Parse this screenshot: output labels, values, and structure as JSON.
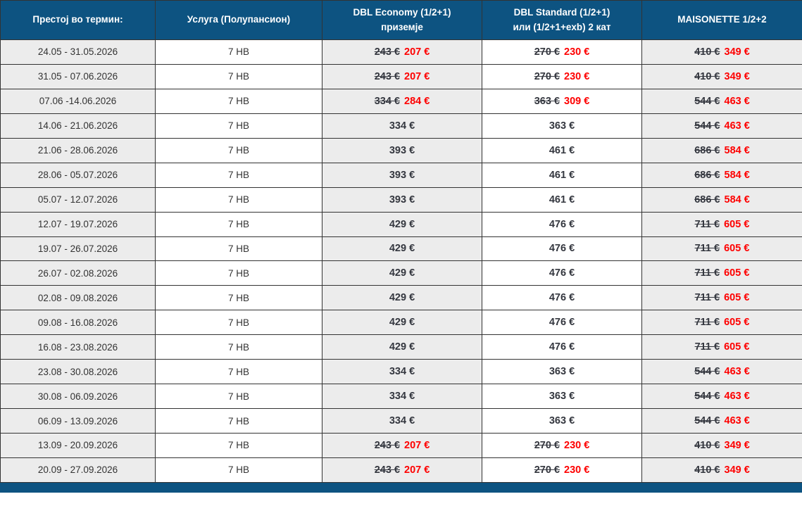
{
  "colors": {
    "header_bg": "#0d5381",
    "header_text": "#ffffff",
    "body_text": "#333333",
    "old_price_text": "#34373f",
    "new_price_text": "#fe0000",
    "gray_column_bg": "#ececec",
    "white_column_bg": "#ffffff",
    "border": "#333333"
  },
  "table": {
    "headers": [
      {
        "label": "Престој во термин:"
      },
      {
        "label": "Услуга (Полупансион)"
      },
      {
        "label": "DBL Economy (1/2+1)\nприземје"
      },
      {
        "label": "DBL Standard (1/2+1)\nили (1/2+1+exb) 2 кат"
      },
      {
        "label": "MAISONETTE 1/2+2"
      }
    ],
    "rows": [
      {
        "period": "24.05 - 31.05.2026",
        "service": "7 HB",
        "prices": [
          {
            "old": "243 €",
            "current": "207 €"
          },
          {
            "old": "270 €",
            "current": "230 €"
          },
          {
            "old": "410 €",
            "current": "349 €"
          }
        ]
      },
      {
        "period": "31.05 - 07.06.2026",
        "service": "7 HB",
        "prices": [
          {
            "old": "243 €",
            "current": "207 €"
          },
          {
            "old": "270 €",
            "current": "230 €"
          },
          {
            "old": "410 €",
            "current": "349 €"
          }
        ]
      },
      {
        "period": "07.06 -14.06.2026",
        "service": "7 HB",
        "prices": [
          {
            "old": "334 €",
            "current": "284 €"
          },
          {
            "old": "363 €",
            "current": "309 €"
          },
          {
            "old": "544 €",
            "current": "463 €"
          }
        ]
      },
      {
        "period": "14.06 - 21.06.2026",
        "service": "7 HB",
        "prices": [
          {
            "old": null,
            "current": "334 €"
          },
          {
            "old": null,
            "current": "363 €"
          },
          {
            "old": "544 €",
            "current": "463 €"
          }
        ]
      },
      {
        "period": "21.06 - 28.06.2026",
        "service": "7 HB",
        "prices": [
          {
            "old": null,
            "current": "393 €"
          },
          {
            "old": null,
            "current": "461 €"
          },
          {
            "old": "686 €",
            "current": "584 €"
          }
        ]
      },
      {
        "period": "28.06 - 05.07.2026",
        "service": "7 HB",
        "prices": [
          {
            "old": null,
            "current": "393 €"
          },
          {
            "old": null,
            "current": "461 €"
          },
          {
            "old": "686 €",
            "current": "584 €"
          }
        ]
      },
      {
        "period": "05.07 - 12.07.2026",
        "service": "7 HB",
        "prices": [
          {
            "old": null,
            "current": "393 €"
          },
          {
            "old": null,
            "current": "461 €"
          },
          {
            "old": "686 €",
            "current": "584 €"
          }
        ]
      },
      {
        "period": "12.07 - 19.07.2026",
        "service": "7 HB",
        "prices": [
          {
            "old": null,
            "current": "429 €"
          },
          {
            "old": null,
            "current": "476 €"
          },
          {
            "old": "711 €",
            "current": "605 €"
          }
        ]
      },
      {
        "period": "19.07 - 26.07.2026",
        "service": "7 HB",
        "prices": [
          {
            "old": null,
            "current": "429 €"
          },
          {
            "old": null,
            "current": "476 €"
          },
          {
            "old": "711 €",
            "current": "605 €"
          }
        ]
      },
      {
        "period": "26.07 - 02.08.2026",
        "service": "7 HB",
        "prices": [
          {
            "old": null,
            "current": "429 €"
          },
          {
            "old": null,
            "current": "476 €"
          },
          {
            "old": "711 €",
            "current": "605 €"
          }
        ]
      },
      {
        "period": "02.08 - 09.08.2026",
        "service": "7 HB",
        "prices": [
          {
            "old": null,
            "current": "429 €"
          },
          {
            "old": null,
            "current": "476 €"
          },
          {
            "old": "711 €",
            "current": "605 €"
          }
        ]
      },
      {
        "period": "09.08 - 16.08.2026",
        "service": "7 HB",
        "prices": [
          {
            "old": null,
            "current": "429 €"
          },
          {
            "old": null,
            "current": "476 €"
          },
          {
            "old": "711 €",
            "current": "605 €"
          }
        ]
      },
      {
        "period": "16.08 - 23.08.2026",
        "service": "7 HB",
        "prices": [
          {
            "old": null,
            "current": "429 €"
          },
          {
            "old": null,
            "current": "476 €"
          },
          {
            "old": "711 €",
            "current": "605 €"
          }
        ]
      },
      {
        "period": "23.08 - 30.08.2026",
        "service": "7 HB",
        "prices": [
          {
            "old": null,
            "current": "334 €"
          },
          {
            "old": null,
            "current": "363 €"
          },
          {
            "old": "544 €",
            "current": "463 €"
          }
        ]
      },
      {
        "period": "30.08 - 06.09.2026",
        "service": "7 HB",
        "prices": [
          {
            "old": null,
            "current": "334 €"
          },
          {
            "old": null,
            "current": "363 €"
          },
          {
            "old": "544 €",
            "current": "463 €"
          }
        ]
      },
      {
        "period": "06.09 - 13.09.2026",
        "service": "7 HB",
        "prices": [
          {
            "old": null,
            "current": "334 €"
          },
          {
            "old": null,
            "current": "363 €"
          },
          {
            "old": "544 €",
            "current": "463 €"
          }
        ]
      },
      {
        "period": "13.09 - 20.09.2026",
        "service": "7 HB",
        "prices": [
          {
            "old": "243 €",
            "current": "207 €"
          },
          {
            "old": "270 €",
            "current": "230 €"
          },
          {
            "old": "410 €",
            "current": "349 €"
          }
        ]
      },
      {
        "period": "20.09 - 27.09.2026",
        "service": "7 HB",
        "prices": [
          {
            "old": "243 €",
            "current": "207 €"
          },
          {
            "old": "270 €",
            "current": "230 €"
          },
          {
            "old": "410 €",
            "current": "349 €"
          }
        ]
      }
    ]
  }
}
